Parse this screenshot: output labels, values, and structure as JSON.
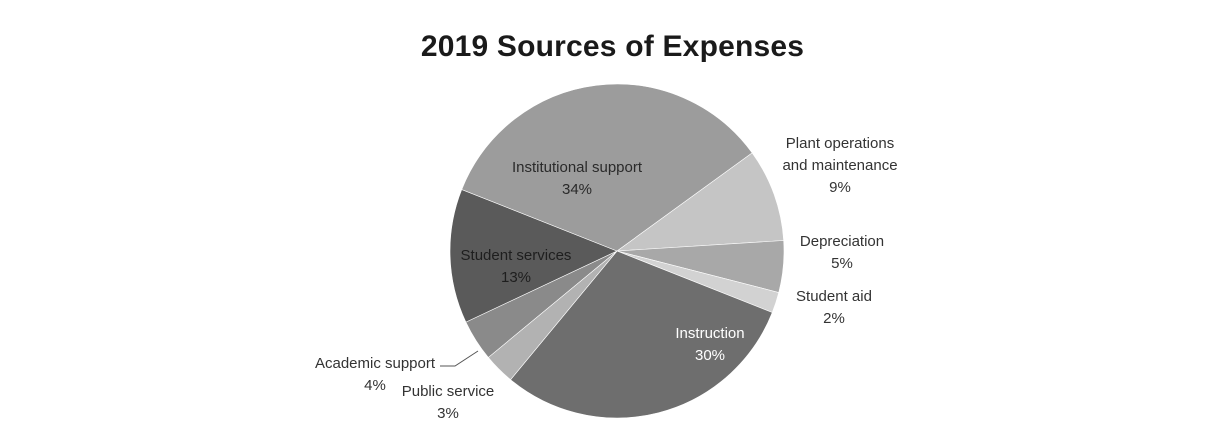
{
  "chart_data": {
    "type": "pie",
    "title": "2019 Sources of Expenses",
    "slices": [
      {
        "name": "Plant operations and maintenance",
        "label_lines": [
          "Plant operations",
          "and maintenance"
        ],
        "percent_label": "9%",
        "value": 9,
        "color": "#c5c5c5"
      },
      {
        "name": "Depreciation",
        "label_lines": [
          "Depreciation"
        ],
        "percent_label": "5%",
        "value": 5,
        "color": "#a8a8a8"
      },
      {
        "name": "Student aid",
        "label_lines": [
          "Student aid"
        ],
        "percent_label": "2%",
        "value": 2,
        "color": "#d2d2d2"
      },
      {
        "name": "Instruction",
        "label_lines": [
          "Instruction"
        ],
        "percent_label": "30%",
        "value": 30,
        "color": "#6e6e6e"
      },
      {
        "name": "Public service",
        "label_lines": [
          "Public service"
        ],
        "percent_label": "3%",
        "value": 3,
        "color": "#b2b2b2"
      },
      {
        "name": "Academic support",
        "label_lines": [
          "Academic support"
        ],
        "percent_label": "4%",
        "value": 4,
        "color": "#8a8a8a"
      },
      {
        "name": "Student services",
        "label_lines": [
          "Student services"
        ],
        "percent_label": "13%",
        "value": 13,
        "color": "#5a5a5a"
      },
      {
        "name": "Institutional support",
        "label_lines": [
          "Institutional support"
        ],
        "percent_label": "34%",
        "value": 34,
        "color": "#9c9c9c"
      }
    ]
  }
}
